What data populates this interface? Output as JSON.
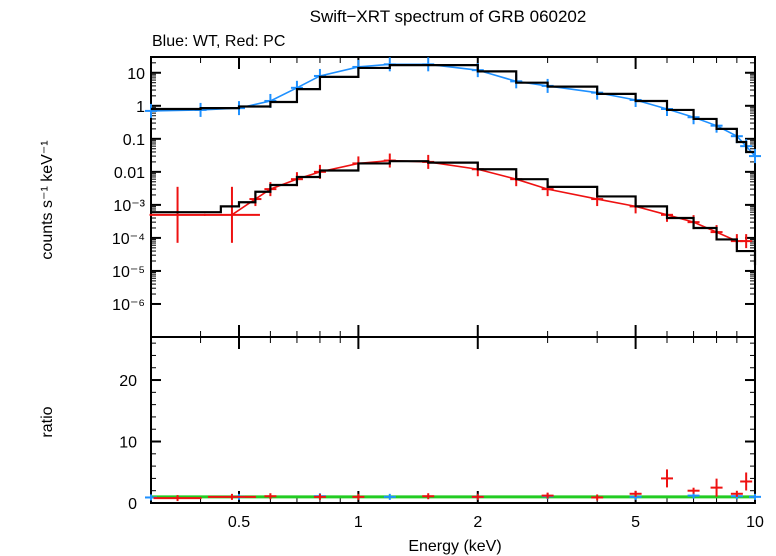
{
  "chart_data": [
    {
      "type": "line",
      "title": "Swift−XRT spectrum of GRB 060202",
      "subtitle": "Blue: WT, Red: PC",
      "xlabel": "",
      "ylabel": "counts s⁻¹ keV⁻¹",
      "xscale": "log",
      "yscale": "log",
      "xlim": [
        0.3,
        10
      ],
      "ylim": [
        1e-07,
        30
      ],
      "grid": false,
      "ytick_labels": [
        "10",
        "1",
        "0.1",
        "0.01",
        "10⁻³",
        "10⁻⁴",
        "10⁻⁵",
        "10⁻⁶"
      ],
      "ytick_values": [
        10,
        1,
        0.1,
        0.01,
        0.001,
        0.0001,
        1e-05,
        1e-06
      ],
      "series": [
        {
          "color": "#1e90ff",
          "kind": "data",
          "x": [
            0.3,
            0.4,
            0.5,
            0.6,
            0.7,
            0.8,
            1.0,
            1.2,
            1.5,
            2.0,
            2.5,
            3.0,
            4.0,
            5.0,
            6.0,
            7.0,
            8.0,
            9.0,
            9.5,
            10.0
          ],
          "y": [
            0.7,
            0.75,
            0.85,
            1.4,
            3.5,
            8.0,
            15,
            18,
            18,
            12,
            5.5,
            4.0,
            2.5,
            1.5,
            0.8,
            0.45,
            0.25,
            0.12,
            0.06,
            0.03
          ]
        },
        {
          "color": "#000000",
          "kind": "model",
          "x": [
            0.3,
            0.4,
            0.5,
            0.6,
            0.7,
            0.8,
            1.0,
            1.2,
            1.5,
            2.0,
            2.5,
            3.0,
            4.0,
            5.0,
            6.0,
            7.0,
            8.0,
            9.0,
            9.5
          ],
          "y": [
            0.8,
            0.85,
            0.95,
            1.3,
            3.2,
            7.5,
            14,
            17,
            17,
            11,
            5.0,
            3.8,
            2.3,
            1.4,
            0.75,
            0.4,
            0.2,
            0.08,
            0.04
          ]
        },
        {
          "color": "#ee1111",
          "kind": "data",
          "x": [
            0.35,
            0.48,
            0.55,
            0.6,
            0.7,
            0.8,
            1.0,
            1.2,
            1.5,
            2.0,
            2.5,
            3.0,
            4.0,
            5.0,
            6.0,
            7.0,
            8.0,
            9.0,
            9.5
          ],
          "y": [
            0.0005,
            0.0005,
            0.0015,
            0.003,
            0.006,
            0.01,
            0.018,
            0.022,
            0.02,
            0.012,
            0.006,
            0.003,
            0.0015,
            0.0009,
            0.0005,
            0.0003,
            0.00015,
            8e-05,
            8e-05
          ]
        },
        {
          "color": "#000000",
          "kind": "model",
          "x": [
            0.3,
            0.4,
            0.45,
            0.5,
            0.55,
            0.6,
            0.7,
            0.8,
            1.0,
            1.2,
            1.5,
            2.0,
            2.5,
            3.0,
            4.0,
            5.0,
            6.0,
            7.0,
            8.0,
            9.0,
            10.0
          ],
          "y": [
            0.0006,
            0.0006,
            0.0009,
            0.0012,
            0.0025,
            0.004,
            0.007,
            0.011,
            0.018,
            0.021,
            0.019,
            0.012,
            0.006,
            0.0035,
            0.0018,
            0.0009,
            0.0004,
            0.0002,
            9e-05,
            4e-05,
            1.5e-05
          ]
        }
      ]
    },
    {
      "type": "scatter",
      "xlabel": "Energy (keV)",
      "ylabel": "ratio",
      "xscale": "log",
      "xlim": [
        0.3,
        10
      ],
      "ylim": [
        0,
        27
      ],
      "reference_line": 1,
      "reference_color": "#22cc22",
      "xtick_labels": [
        "0.5",
        "1",
        "2",
        "5",
        "10"
      ],
      "xtick_values": [
        0.5,
        1,
        2,
        5,
        10
      ],
      "ytick_labels": [
        "0",
        "10",
        "20"
      ],
      "ytick_values": [
        0,
        10,
        20
      ],
      "series": [
        {
          "color": "#1e90ff",
          "x": [
            0.3,
            0.5,
            0.8,
            1.2,
            2.0,
            3.0,
            5.0,
            7.0,
            9.0,
            10.0
          ],
          "y": [
            0.9,
            1.0,
            1.1,
            1.0,
            1.0,
            1.1,
            1.0,
            1.2,
            1.1,
            1.0
          ]
        },
        {
          "color": "#ee1111",
          "x": [
            0.35,
            0.48,
            0.6,
            0.8,
            1.0,
            1.5,
            2.0,
            3.0,
            4.0,
            5.0,
            6.0,
            7.0,
            8.0,
            9.0,
            9.5
          ],
          "y": [
            0.8,
            1.0,
            1.1,
            1.0,
            1.0,
            1.1,
            1.0,
            1.2,
            0.9,
            1.5,
            4.0,
            2.0,
            2.5,
            1.5,
            3.5
          ]
        }
      ]
    }
  ]
}
